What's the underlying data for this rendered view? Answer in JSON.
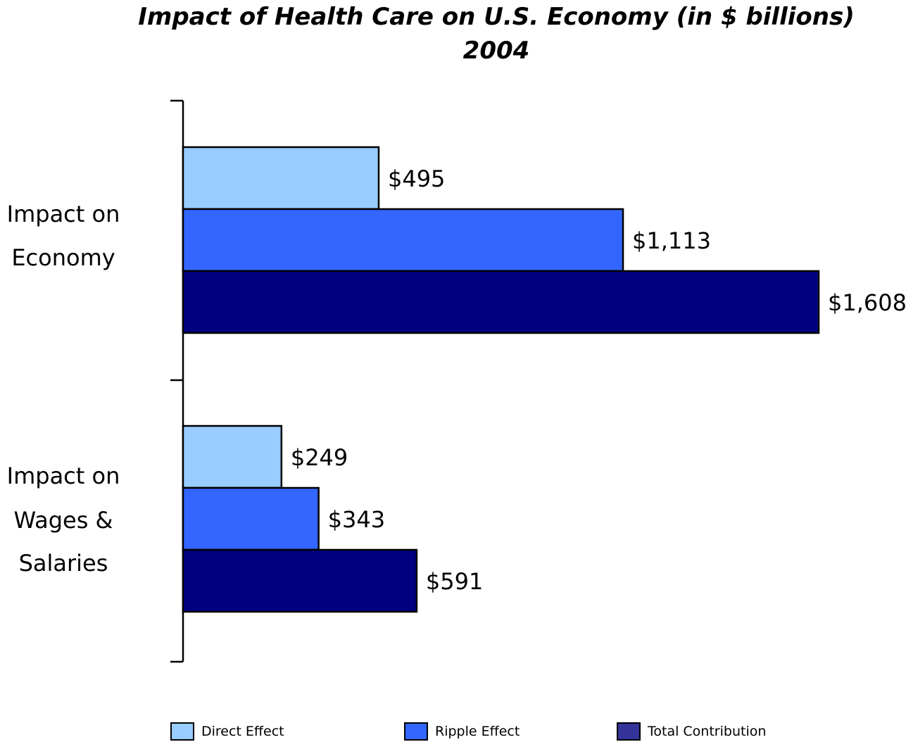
{
  "chart_data": {
    "type": "bar",
    "orientation": "horizontal",
    "title": "Impact of Health Care on U.S. Economy (in $ billions)",
    "subtitle": "2004",
    "categories": [
      [
        "Impact on",
        "Economy"
      ],
      [
        "Impact on",
        "Wages &",
        "Salaries"
      ]
    ],
    "series": [
      {
        "name": "Direct Effect",
        "color": "#99ccff",
        "values": [
          495,
          249
        ],
        "labels": [
          "$495",
          "$249"
        ]
      },
      {
        "name": "Ripple Effect",
        "color": "#3366ff",
        "values": [
          1113,
          343
        ],
        "labels": [
          "$1,113",
          "$343"
        ]
      },
      {
        "name": "Total Contribution",
        "color": "#000080",
        "legend_color": "#333399",
        "values": [
          1608,
          591
        ],
        "labels": [
          "$1,608",
          "$591"
        ]
      }
    ],
    "xlim": [
      0,
      1608
    ],
    "grid": false,
    "legend_position": "bottom"
  }
}
